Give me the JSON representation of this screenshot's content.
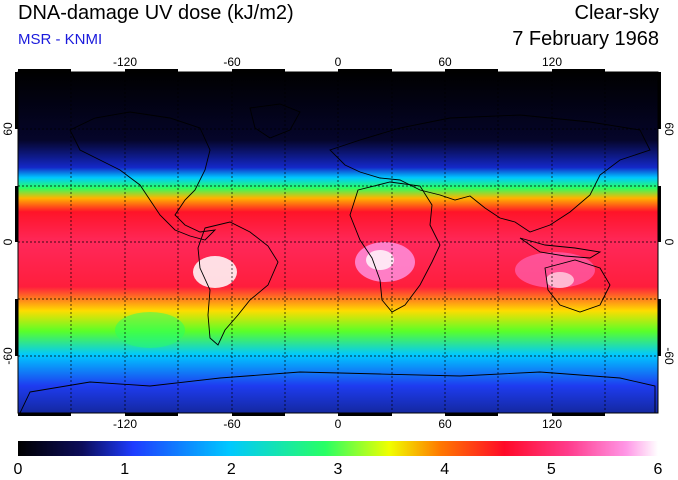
{
  "header": {
    "title": "DNA-damage UV dose (kJ/m2)",
    "subtitle": "MSR - KNMI",
    "sky_condition": "Clear-sky",
    "date": "7 February 1968"
  },
  "colors": {
    "subtitle": "#1a1adc",
    "scale": [
      "#000000",
      "#0c0c5a",
      "#1e3cff",
      "#00c8ff",
      "#28ff64",
      "#f0ff00",
      "#ff7800",
      "#ff0a28",
      "#ff3c8c",
      "#ff96e6",
      "#ffffff"
    ]
  },
  "map": {
    "projection": "equirectangular",
    "lon_ticks": [
      -120,
      -60,
      0,
      60,
      120
    ],
    "lat_ticks": [
      60,
      0,
      -60
    ],
    "grid": "dotted every 30 degrees"
  },
  "colorbar": {
    "min": 0,
    "max": 6,
    "tick_labels": [
      "0",
      "1",
      "2",
      "3",
      "4",
      "5",
      "6"
    ]
  }
}
